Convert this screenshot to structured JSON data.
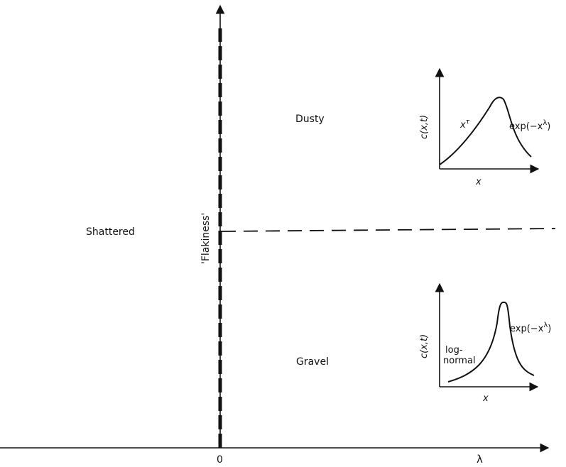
{
  "regions": {
    "shattered": "Shattered",
    "dusty": "Dusty",
    "gravel": "Gravel"
  },
  "axes": {
    "vertical_label": "'Flakiness'",
    "horizontal_label": "λ",
    "origin_label": "0"
  },
  "inset_top": {
    "ylabel": "c(x,t)",
    "xlabel": "x",
    "left_annotation": "x^{τ}",
    "right_annotation": "exp(−x^λ)"
  },
  "inset_bottom": {
    "ylabel": "c(x,t)",
    "xlabel": "x",
    "left_annotation_line1": "log-",
    "left_annotation_line2": "normal",
    "right_annotation": "exp(−x^λ)"
  }
}
